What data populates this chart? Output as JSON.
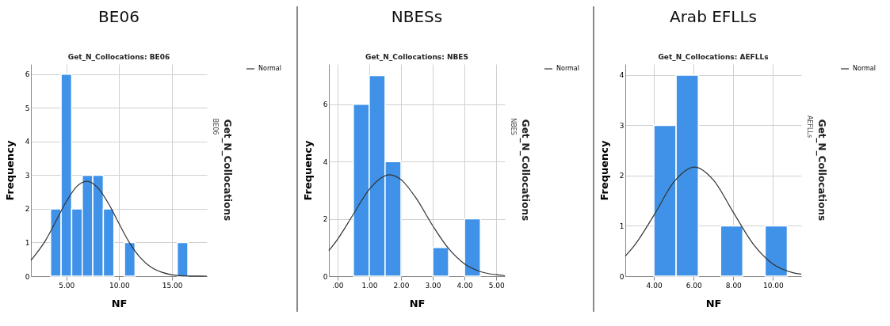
{
  "chart_data": [
    {
      "type": "histogram",
      "title": "BE06",
      "subtitle": "Get_N_Collocations: BE06",
      "xlabel": "NF",
      "ylabel": "Frequency",
      "y2label": "Get_N_Collocations",
      "annotations": [
        "BE06"
      ],
      "color": "#3f92e8",
      "bins": [
        3.5,
        4.5,
        5.5,
        6.5,
        7.5,
        8.5,
        9.5,
        10.5,
        11.5,
        12.5,
        13.5,
        14.5,
        15.5,
        16.5
      ],
      "values": [
        2,
        6,
        2,
        3,
        3,
        2,
        0,
        1,
        0,
        0,
        0,
        0,
        1
      ],
      "series": [
        {
          "type": "line",
          "name": "Normal",
          "color": "#333333",
          "x": [
            1.64,
            3,
            4,
            5,
            6,
            6.93,
            8,
            9,
            10,
            11,
            12,
            13,
            14,
            15,
            16,
            18.3
          ],
          "values": [
            0.47,
            1.05,
            1.63,
            2.22,
            2.67,
            2.82,
            2.62,
            2.15,
            1.55,
            0.98,
            0.55,
            0.27,
            0.12,
            0.04,
            0.01,
            0
          ]
        }
      ],
      "xlim": [
        1.64,
        18.3
      ],
      "xticks": [
        {
          "value": 5,
          "label": "5.00"
        },
        {
          "value": 10,
          "label": "10.00"
        },
        {
          "value": 15,
          "label": "15.00"
        }
      ],
      "ylim": [
        0,
        6.3
      ],
      "yticks": [
        0,
        1,
        2,
        3,
        4,
        5,
        6
      ],
      "grid": true,
      "legend": "top right"
    },
    {
      "type": "histogram",
      "title": "NBESs",
      "subtitle": "Get_N_Collocations: NBES",
      "xlabel": "NF",
      "ylabel": "Frequency",
      "y2label": "Get_N_Collocations",
      "annotations": [
        "NBES"
      ],
      "color": "#3f92e8",
      "bins": [
        0.5,
        1,
        1.5,
        2,
        2.5,
        3,
        3.5,
        4,
        4.5
      ],
      "values": [
        6,
        7,
        4,
        0,
        0,
        1,
        0,
        2
      ],
      "series": [
        {
          "type": "line",
          "name": "Normal",
          "color": "#333333",
          "x": [
            -0.27,
            0,
            0.5,
            1,
            1.64,
            2,
            2.5,
            3,
            3.5,
            4,
            4.5,
            5,
            5.27
          ],
          "values": [
            0.89,
            1.28,
            2.16,
            3.03,
            3.54,
            3.37,
            2.68,
            1.76,
            0.96,
            0.43,
            0.16,
            0.05,
            0.02
          ]
        }
      ],
      "xlim": [
        -0.27,
        5.27
      ],
      "xticks": [
        {
          "value": 0,
          "label": ".00"
        },
        {
          "value": 1,
          "label": "1.00"
        },
        {
          "value": 2,
          "label": "2.00"
        },
        {
          "value": 3,
          "label": "3.00"
        },
        {
          "value": 4,
          "label": "4.00"
        },
        {
          "value": 5,
          "label": "5.00"
        }
      ],
      "ylim": [
        0,
        7.4
      ],
      "yticks": [
        0,
        2,
        4,
        6
      ],
      "grid": true,
      "legend": "top right"
    },
    {
      "type": "histogram",
      "title": "Arab EFLLs",
      "subtitle": "Get_N_Collocations: AEFLLs",
      "xlabel": "NF",
      "ylabel": "Frequency",
      "y2label": "Get_N_Collocations",
      "annotations": [
        "AEFLLs"
      ],
      "color": "#3f92e8",
      "bins": [
        4.0,
        5.12,
        6.24,
        7.36,
        8.48,
        9.6,
        10.72
      ],
      "values": [
        3,
        4,
        0,
        1,
        0,
        1
      ],
      "series": [
        {
          "type": "line",
          "name": "Normal",
          "color": "#333333",
          "x": [
            2.56,
            3,
            4,
            5,
            6.04,
            7,
            8,
            9,
            10,
            11,
            11.42
          ],
          "values": [
            0.4,
            0.6,
            1.21,
            1.87,
            2.17,
            1.91,
            1.27,
            0.64,
            0.24,
            0.07,
            0.04
          ]
        }
      ],
      "xlim": [
        2.56,
        11.42
      ],
      "xticks": [
        {
          "value": 4,
          "label": "4.00"
        },
        {
          "value": 6,
          "label": "6.00"
        },
        {
          "value": 8,
          "label": "8.00"
        },
        {
          "value": 10,
          "label": "10.00"
        }
      ],
      "ylim": [
        0,
        4.22
      ],
      "yticks": [
        0,
        1,
        2,
        3,
        4
      ],
      "grid": true,
      "legend": "top right"
    }
  ]
}
